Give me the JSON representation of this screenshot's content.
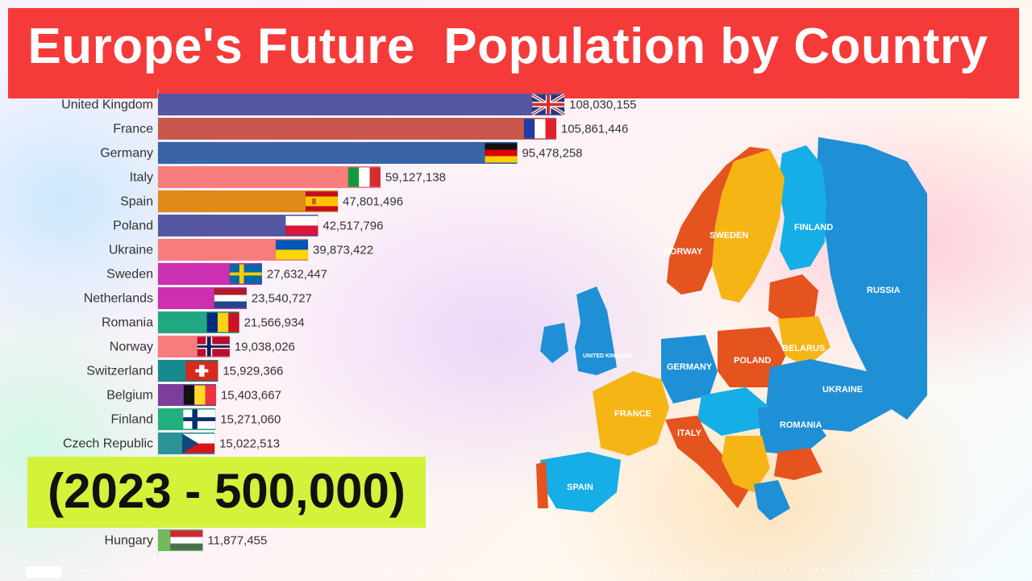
{
  "title": "Europe's Future  Population by Country",
  "period": "(2023 - 500,000)",
  "chart_data": {
    "type": "bar",
    "orientation": "horizontal",
    "title": "Europe's Future  Population by Country",
    "categories": [
      "United Kingdom",
      "France",
      "Germany",
      "Italy",
      "Spain",
      "Poland",
      "Ukraine",
      "Sweden",
      "Netherlands",
      "Romania",
      "Norway",
      "Switzerland",
      "Belgium",
      "Finland",
      "Czech Republic",
      "Hungary"
    ],
    "values": [
      108030155,
      105861446,
      95478258,
      59127138,
      47801496,
      42517796,
      39873422,
      27632447,
      23540727,
      21566934,
      19038026,
      15929366,
      15403667,
      15271060,
      15022513,
      11877455
    ],
    "value_labels": [
      "108,030,155",
      "105,861,446",
      "95,478,258",
      "59,127,138",
      "47,801,496",
      "42,517,796",
      "39,873,422",
      "27,632,447",
      "23,540,727",
      "21,566,934",
      "19,038,026",
      "15,929,366",
      "15,403,667",
      "15,271,060",
      "15,022,513",
      "11,877,455"
    ],
    "bar_colors": [
      "#5558a0",
      "#c9574c",
      "#3a64a8",
      "#f77d7d",
      "#e08a1c",
      "#5558a0",
      "#f77d7d",
      "#cc2fb0",
      "#cc2fb0",
      "#21a882",
      "#f77d7d",
      "#168a8e",
      "#7b3f9a",
      "#22b07e",
      "#2c9498",
      "#72b85c"
    ],
    "flags": [
      "gb-flag",
      "fr-flag",
      "de-flag",
      "it-flag",
      "es-flag",
      "pl-flag",
      "ua-flag",
      "se-flag",
      "nl-flag",
      "ro-flag",
      "no-flag",
      "ch-flag",
      "be-flag",
      "fi-flag",
      "cz-flag",
      "hu-flag"
    ],
    "xlim": [
      0,
      108030155
    ],
    "grid": false,
    "legend": "none"
  },
  "map": {
    "labels": [
      "NORWAY",
      "SWEDEN",
      "FINLAND",
      "RUSSIA",
      "UNITED KINGDOM",
      "GERMANY",
      "POLAND",
      "BELARUS",
      "UKRAINE",
      "FRANCE",
      "ITALY",
      "ROMANIA",
      "SPAIN"
    ]
  }
}
